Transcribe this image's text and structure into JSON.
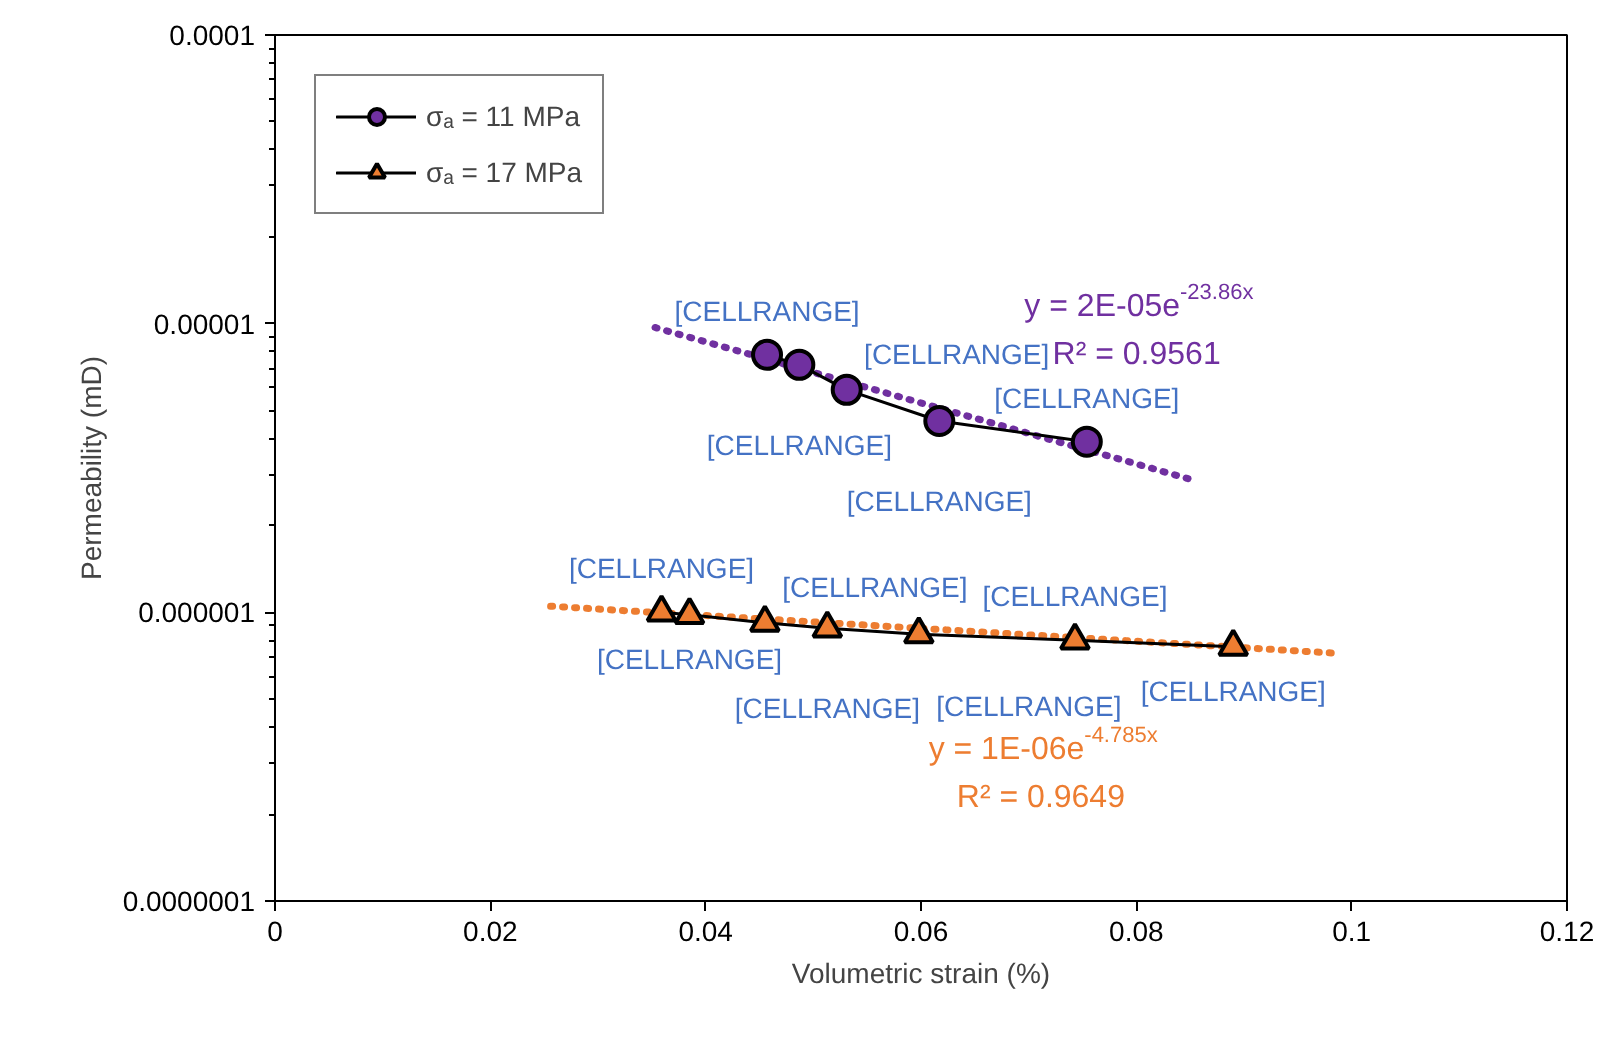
{
  "chart_data": {
    "type": "line",
    "xlabel": "Volumetric strain (%)",
    "ylabel": "Permeability (mD)",
    "log": "y",
    "xlim": [
      0,
      0.12
    ],
    "xticks": [
      0,
      0.02,
      0.04,
      0.06,
      0.08,
      0.1,
      0.12
    ],
    "ylim": [
      1e-07,
      0.0001
    ],
    "yticks": [
      {
        "value": 1e-07,
        "label": "0.0000001"
      },
      {
        "value": 1e-06,
        "label": "0.000001"
      },
      {
        "value": 1e-05,
        "label": "0.00001"
      },
      {
        "value": 0.0001,
        "label": "0.0001"
      }
    ],
    "grid": false,
    "legend": "top left",
    "series": [
      {
        "type": "line",
        "line_style": "dotted",
        "marker": "none",
        "name": "y = 2E-05e$^{-23.86x}$\nR² = 0.9561",
        "color": "#7030a0",
        "x": [
          0.0353,
          0.0856
        ],
        "values": [
          9.7e-06,
          2.85e-06
        ]
      },
      {
        "type": "line",
        "line_style": "dotted",
        "marker": "none",
        "name": "y = 1E-06e$^{-4.785x}$\nR² = 0.9649",
        "color": "#ed7d31",
        "x": [
          0.0256,
          0.099
        ],
        "values": [
          1.05e-06,
          7.2e-07
        ]
      },
      {
        "name": "σₐ = 11 MPa",
        "marker": "circle",
        "color": "#7030a0",
        "x": [
          0.0457,
          0.0487,
          0.0531,
          0.0617,
          0.0754
        ],
        "values": [
          7.8e-06,
          7.2e-06,
          5.9e-06,
          4.6e-06,
          3.9e-06
        ],
        "value_labels": [
          "[CELLRANGE]",
          "[CELLRANGE]",
          "[CELLRANGE]",
          "[CELLRANGE]",
          "[CELLRANGE]"
        ]
      },
      {
        "name": "σₐ = 17 MPa",
        "marker": "triangle",
        "color": "#ed7d31",
        "x": [
          0.0359,
          0.0385,
          0.0455,
          0.0513,
          0.0598,
          0.0743,
          0.089
        ],
        "values": [
          1e-06,
          9.8e-07,
          9.2e-07,
          8.8e-07,
          8.4e-07,
          8e-07,
          7.6e-07
        ],
        "value_labels": [
          "[CELLRANGE]",
          "[CELLRANGE]",
          "[CELLRANGE]",
          "[CELLRANGE]",
          "[CELLRANGE]",
          "[CELLRANGE]",
          "[CELLRANGE]"
        ]
      }
    ]
  }
}
